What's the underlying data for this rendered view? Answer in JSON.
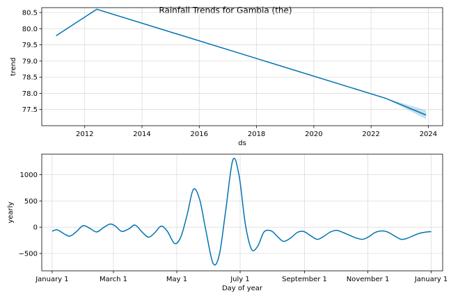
{
  "title": "Rainfall Trends for Gambia (the)",
  "chart_data": [
    {
      "type": "line",
      "name": "trend-panel",
      "xlabel": "ds",
      "ylabel": "trend",
      "xlim": [
        2010.5,
        2024.5
      ],
      "ylim": [
        77.0,
        80.65
      ],
      "xticks": [
        2012,
        2014,
        2016,
        2018,
        2020,
        2022,
        2024
      ],
      "xtick_labels": [
        "2012",
        "2014",
        "2016",
        "2018",
        "2020",
        "2022",
        "2024"
      ],
      "yticks": [
        77.5,
        78.0,
        78.5,
        79.0,
        79.5,
        80.0,
        80.5
      ],
      "ytick_labels": [
        "77.5",
        "78.0",
        "78.5",
        "79.0",
        "79.5",
        "80.0",
        "80.5"
      ],
      "grid": true,
      "color": "#0072B2",
      "band_color": "#0072B2",
      "x": [
        2011.0,
        2012.42,
        2022.5,
        2023.92
      ],
      "y": [
        79.78,
        80.6,
        77.85,
        77.33
      ],
      "uncertainty": {
        "x": [
          2022.5,
          2023.92
        ],
        "lower": [
          77.85,
          77.2
        ],
        "upper": [
          77.85,
          77.48
        ]
      }
    },
    {
      "type": "line",
      "name": "yearly-panel",
      "xlabel": "Day of year",
      "ylabel": "yearly",
      "xlim": [
        -10,
        376
      ],
      "ylim": [
        -830,
        1390
      ],
      "xticks": [
        0,
        59,
        120,
        181,
        243,
        304,
        365
      ],
      "xtick_labels": [
        "January 1",
        "March 1",
        "May 1",
        "July 1",
        "September 1",
        "November 1",
        "January 1"
      ],
      "yticks": [
        -500,
        0,
        500,
        1000
      ],
      "ytick_labels": [
        "−500",
        "0",
        "500",
        "1000"
      ],
      "grid": true,
      "color": "#0072B2",
      "x": [
        0,
        5,
        11,
        17,
        23,
        30,
        37,
        43,
        50,
        56,
        61,
        67,
        74,
        80,
        87,
        93,
        99,
        105,
        111,
        118,
        124,
        130,
        136,
        142,
        148,
        155,
        161,
        167,
        174,
        180,
        186,
        192,
        198,
        204,
        211,
        217,
        223,
        230,
        236,
        242,
        248,
        255,
        261,
        268,
        274,
        280,
        286,
        292,
        299,
        305,
        311,
        318,
        324,
        330,
        336,
        342,
        349,
        355,
        361,
        365
      ],
      "y": [
        -75,
        -50,
        -120,
        -170,
        -90,
        30,
        -30,
        -90,
        0,
        60,
        20,
        -80,
        -30,
        40,
        -100,
        -190,
        -100,
        20,
        -80,
        -310,
        -180,
        240,
        720,
        530,
        -60,
        -690,
        -520,
        300,
        1280,
        980,
        60,
        -420,
        -360,
        -90,
        -70,
        -180,
        -270,
        -200,
        -100,
        -80,
        -150,
        -230,
        -180,
        -90,
        -60,
        -100,
        -150,
        -200,
        -230,
        -180,
        -100,
        -70,
        -100,
        -170,
        -230,
        -210,
        -150,
        -110,
        -90,
        -85
      ]
    }
  ]
}
